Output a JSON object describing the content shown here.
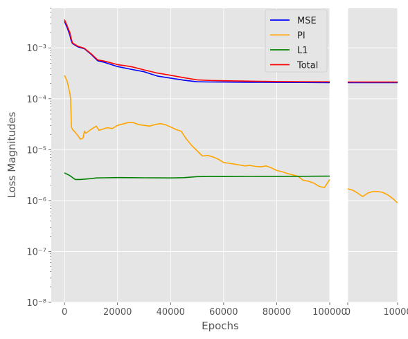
{
  "chart_data": {
    "type": "line",
    "xlabel": "Epochs",
    "ylabel": "Loss Magnitudes",
    "yscale": "log",
    "ylim": [
      1e-08,
      0.006
    ],
    "grid": true,
    "legend_position": "top-right",
    "y_tick_labels": [
      "10⁻⁸",
      "10⁻⁷",
      "10⁻⁶",
      "10⁻⁵",
      "10⁻⁴",
      "10⁻³"
    ],
    "panels": [
      {
        "xlim": [
          -5000,
          100000
        ],
        "x_ticks": [
          0,
          20000,
          40000,
          60000,
          80000,
          100000
        ],
        "x_tick_labels": [
          "0",
          "20000",
          "40000",
          "60000",
          "80000",
          "100000"
        ],
        "series": [
          {
            "name": "MSE",
            "color": "#0000ff",
            "x": [
              0,
              1000,
              2000,
              2500,
              3000,
              5000,
              7500,
              10000,
              12500,
              15000,
              20000,
              25000,
              30000,
              35000,
              40000,
              45000,
              50000,
              55000,
              60000,
              70000,
              80000,
              90000,
              100000
            ],
            "y": [
              0.0033,
              0.0025,
              0.0018,
              0.0014,
              0.00122,
              0.00105,
              0.00096,
              0.00075,
              0.00056,
              0.00052,
              0.00043,
              0.00038,
              0.00034,
              0.00028,
              0.000255,
              0.000232,
              0.000216,
              0.000214,
              0.000213,
              0.000211,
              0.00021,
              0.000209,
              0.000208
            ]
          },
          {
            "name": "PI",
            "color": "#ffa500",
            "x": [
              0,
              1000,
              2000,
              2300,
              2600,
              3000,
              4000,
              5000,
              6000,
              7000,
              7500,
              8000,
              10000,
              12000,
              13000,
              14000,
              16000,
              18000,
              20000,
              22000,
              24000,
              26000,
              28000,
              30000,
              32000,
              34000,
              36000,
              38000,
              40000,
              42000,
              44000,
              46000,
              48000,
              50000,
              52000,
              54000,
              56000,
              58000,
              60000,
              62000,
              64000,
              66000,
              68000,
              70000,
              72000,
              74000,
              76000,
              78000,
              80000,
              82000,
              84000,
              86000,
              88000,
              90000,
              92000,
              94000,
              96000,
              98000,
              100000
            ],
            "y": [
              0.00029,
              0.00022,
              0.00013,
              0.0001,
              2.8e-05,
              2.5e-05,
              2.2e-05,
              1.9e-05,
              1.6e-05,
              1.7e-05,
              2.3e-05,
              2.1e-05,
              2.5e-05,
              2.9e-05,
              2.4e-05,
              2.5e-05,
              2.7e-05,
              2.6e-05,
              3e-05,
              3.2e-05,
              3.4e-05,
              3.4e-05,
              3.1e-05,
              3e-05,
              2.9e-05,
              3.1e-05,
              3.25e-05,
              3.1e-05,
              2.8e-05,
              2.5e-05,
              2.3e-05,
              1.6e-05,
              1.2e-05,
              9.5e-06,
              7.5e-06,
              7.7e-06,
              7.2e-06,
              6.5e-06,
              5.6e-06,
              5.4e-06,
              5.2e-06,
              5e-06,
              4.8e-06,
              4.9e-06,
              4.7e-06,
              4.6e-06,
              4.8e-06,
              4.4e-06,
              3.9e-06,
              3.7e-06,
              3.4e-06,
              3.2e-06,
              3e-06,
              2.5e-06,
              2.4e-06,
              2.2e-06,
              1.9e-06,
              1.8e-06,
              2.6e-06
            ]
          },
          {
            "name": "L1",
            "color": "#008000",
            "x": [
              0,
              2000,
              4000,
              6000,
              8000,
              10000,
              12000,
              15000,
              20000,
              25000,
              30000,
              35000,
              40000,
              45000,
              50000,
              55000,
              60000,
              70000,
              80000,
              90000,
              100000
            ],
            "y": [
              3.5e-06,
              3.1e-06,
              2.6e-06,
              2.6e-06,
              2.65e-06,
              2.7e-06,
              2.78e-06,
              2.8e-06,
              2.83e-06,
              2.82e-06,
              2.8e-06,
              2.79e-06,
              2.78e-06,
              2.82e-06,
              2.95e-06,
              2.97e-06,
              2.96e-06,
              2.98e-06,
              2.99e-06,
              3e-06,
              3.02e-06
            ]
          },
          {
            "name": "Total",
            "color": "#ff0000",
            "x": [
              0,
              1000,
              2000,
              2500,
              3000,
              5000,
              7500,
              10000,
              12500,
              15000,
              20000,
              25000,
              30000,
              35000,
              40000,
              45000,
              50000,
              55000,
              60000,
              70000,
              80000,
              90000,
              100000
            ],
            "y": [
              0.0036,
              0.0027,
              0.002,
              0.00155,
              0.00125,
              0.00108,
              0.00098,
              0.00077,
              0.00058,
              0.00055,
              0.00047,
              0.00043,
              0.00037,
              0.00032,
              0.00029,
              0.00026,
              0.000236,
              0.000229,
              0.000226,
              0.000222,
              0.000218,
              0.000216,
              0.000215
            ]
          }
        ]
      },
      {
        "xlim": [
          0,
          10000
        ],
        "x_ticks": [
          0,
          10000
        ],
        "x_tick_labels": [
          "0",
          "10000"
        ],
        "series": [
          {
            "name": "MSE",
            "color": "#0000ff",
            "x": [
              0,
              2000,
              4000,
              6000,
              8000,
              10000
            ],
            "y": [
              0.000208,
              0.000207,
              0.000207,
              0.000207,
              0.000207,
              0.000207
            ]
          },
          {
            "name": "PI",
            "color": "#ffa500",
            "x": [
              0,
              1000,
              2000,
              3000,
              4000,
              5000,
              6000,
              7000,
              8000,
              9000,
              10000
            ],
            "y": [
              1.7e-06,
              1.6e-06,
              1.4e-06,
              1.2e-06,
              1.4e-06,
              1.5e-06,
              1.5e-06,
              1.45e-06,
              1.3e-06,
              1.1e-06,
              9e-07
            ]
          },
          {
            "name": "L1",
            "color": "#008000",
            "x": [],
            "y": []
          },
          {
            "name": "Total",
            "color": "#ff0000",
            "x": [
              0,
              2000,
              4000,
              6000,
              8000,
              10000
            ],
            "y": [
              0.000214,
              0.000214,
              0.000213,
              0.000213,
              0.000213,
              0.000213
            ]
          }
        ]
      }
    ],
    "legend": [
      {
        "label": "MSE",
        "color": "#0000ff"
      },
      {
        "label": "PI",
        "color": "#ffa500"
      },
      {
        "label": "L1",
        "color": "#008000"
      },
      {
        "label": "Total",
        "color": "#ff0000"
      }
    ]
  }
}
